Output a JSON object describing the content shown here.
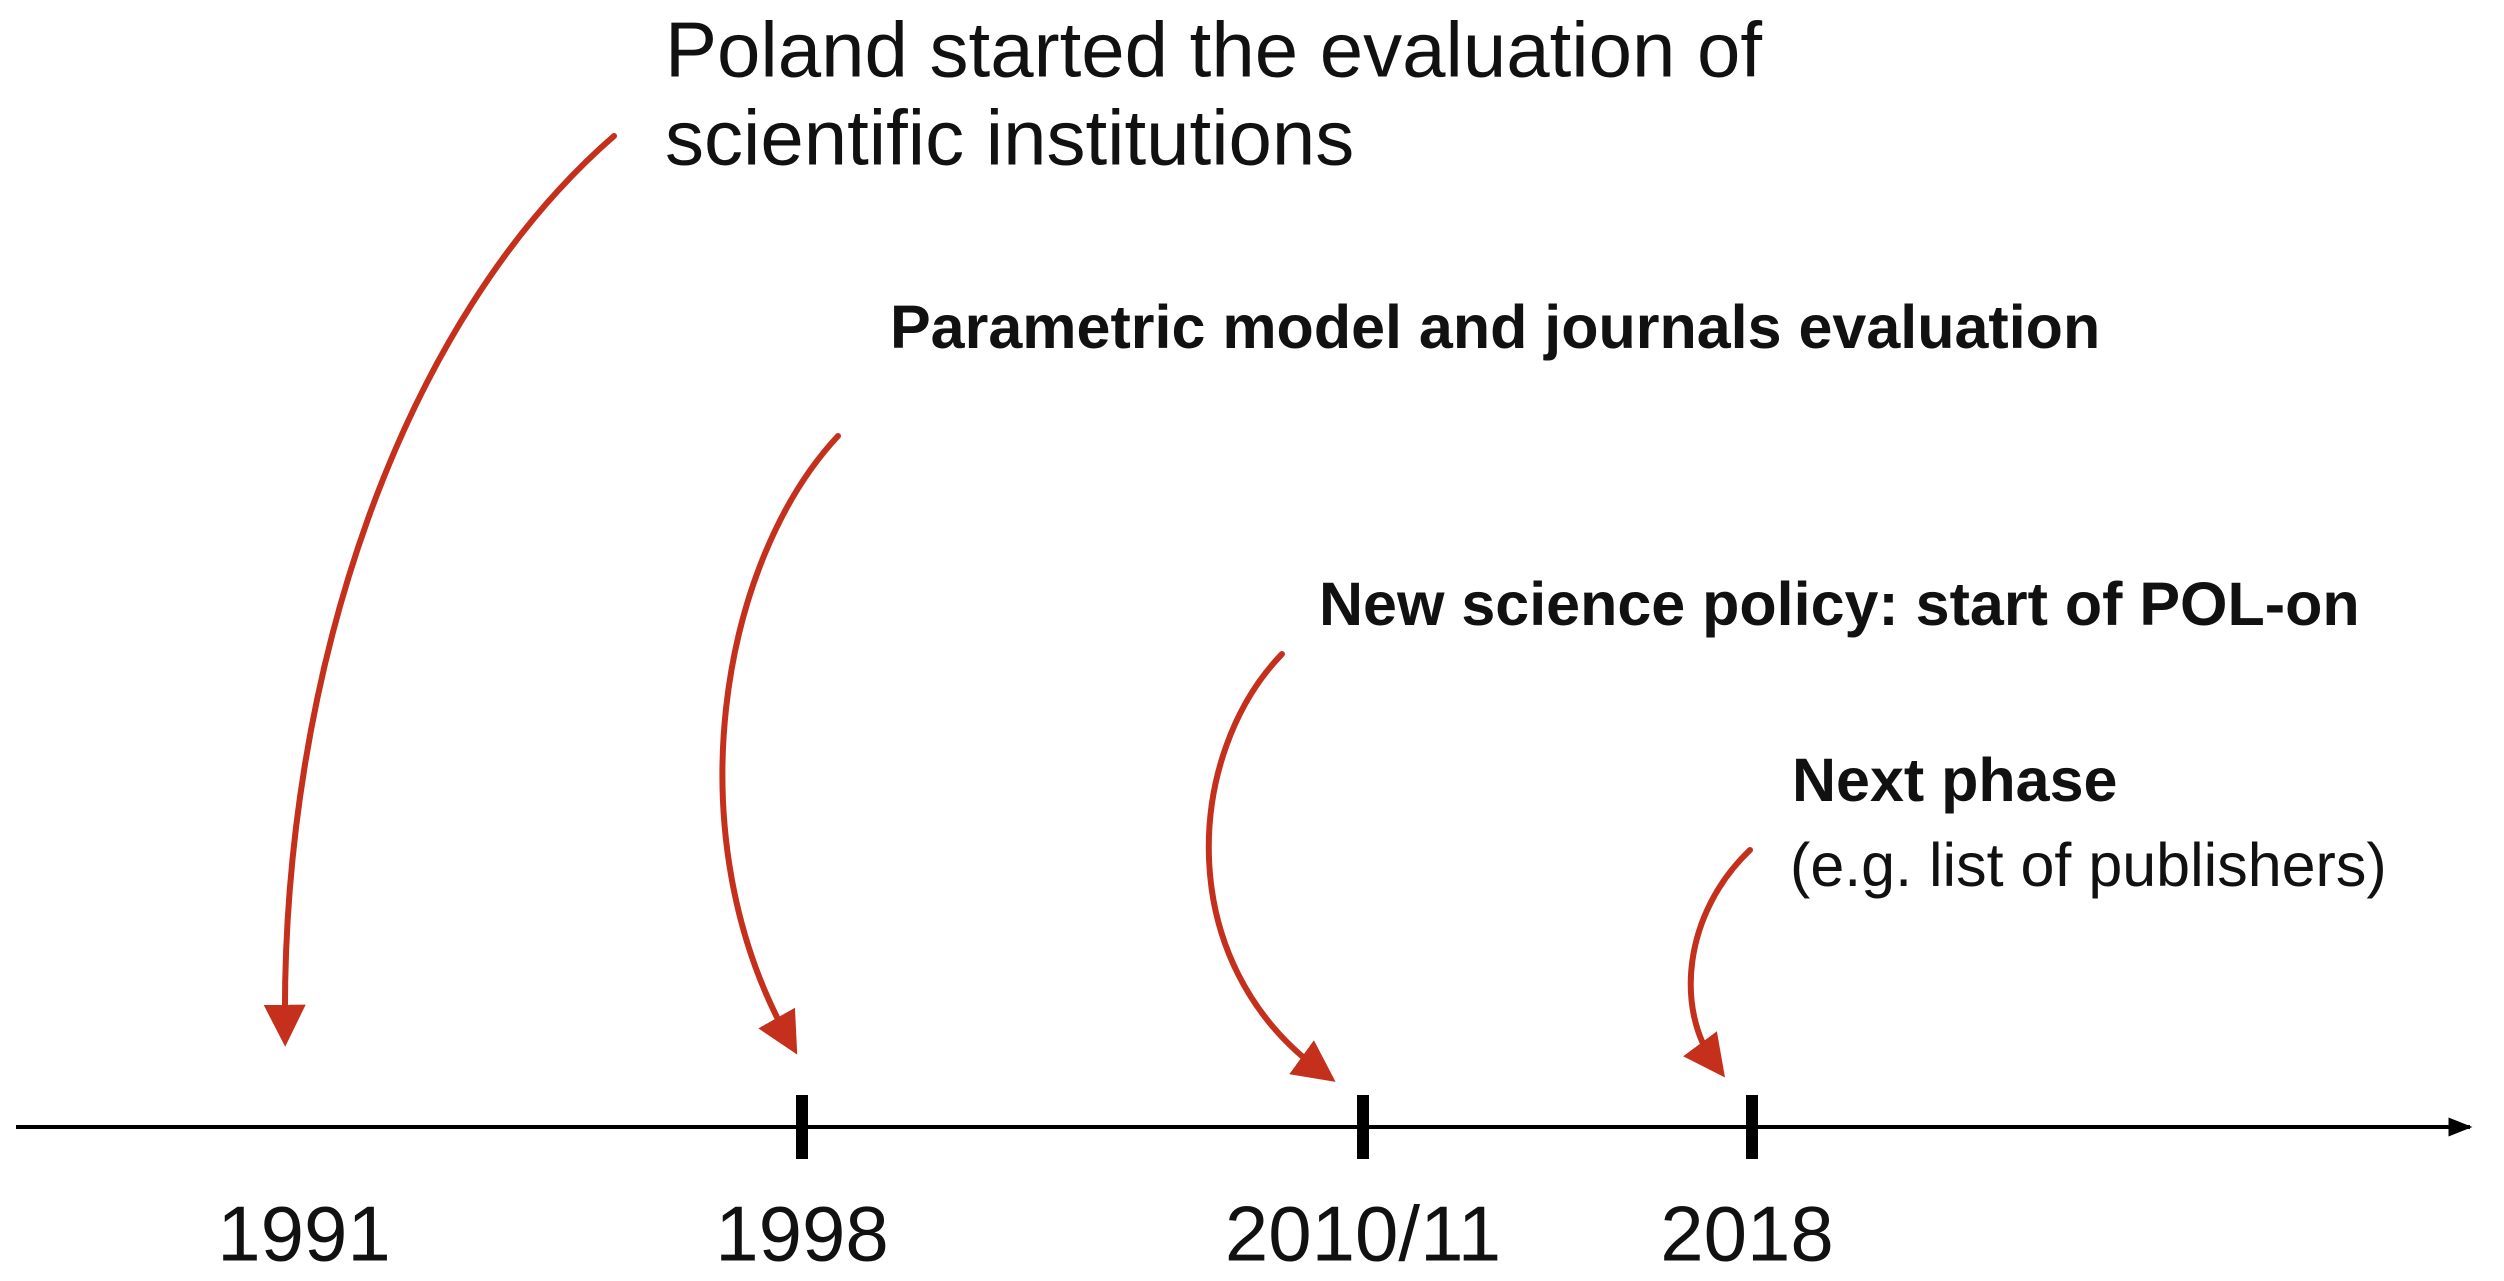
{
  "events": [
    {
      "year": "1991",
      "label_lines": [
        "Poland started the evaluation of",
        "scientific institutions"
      ]
    },
    {
      "year": "1998",
      "label": "Parametric model and journals evaluation"
    },
    {
      "year": "2010/11",
      "label": "New science policy: start of POL-on"
    },
    {
      "year": "2018",
      "label": "Next phase",
      "note": "(e.g. list of publishers)"
    }
  ]
}
